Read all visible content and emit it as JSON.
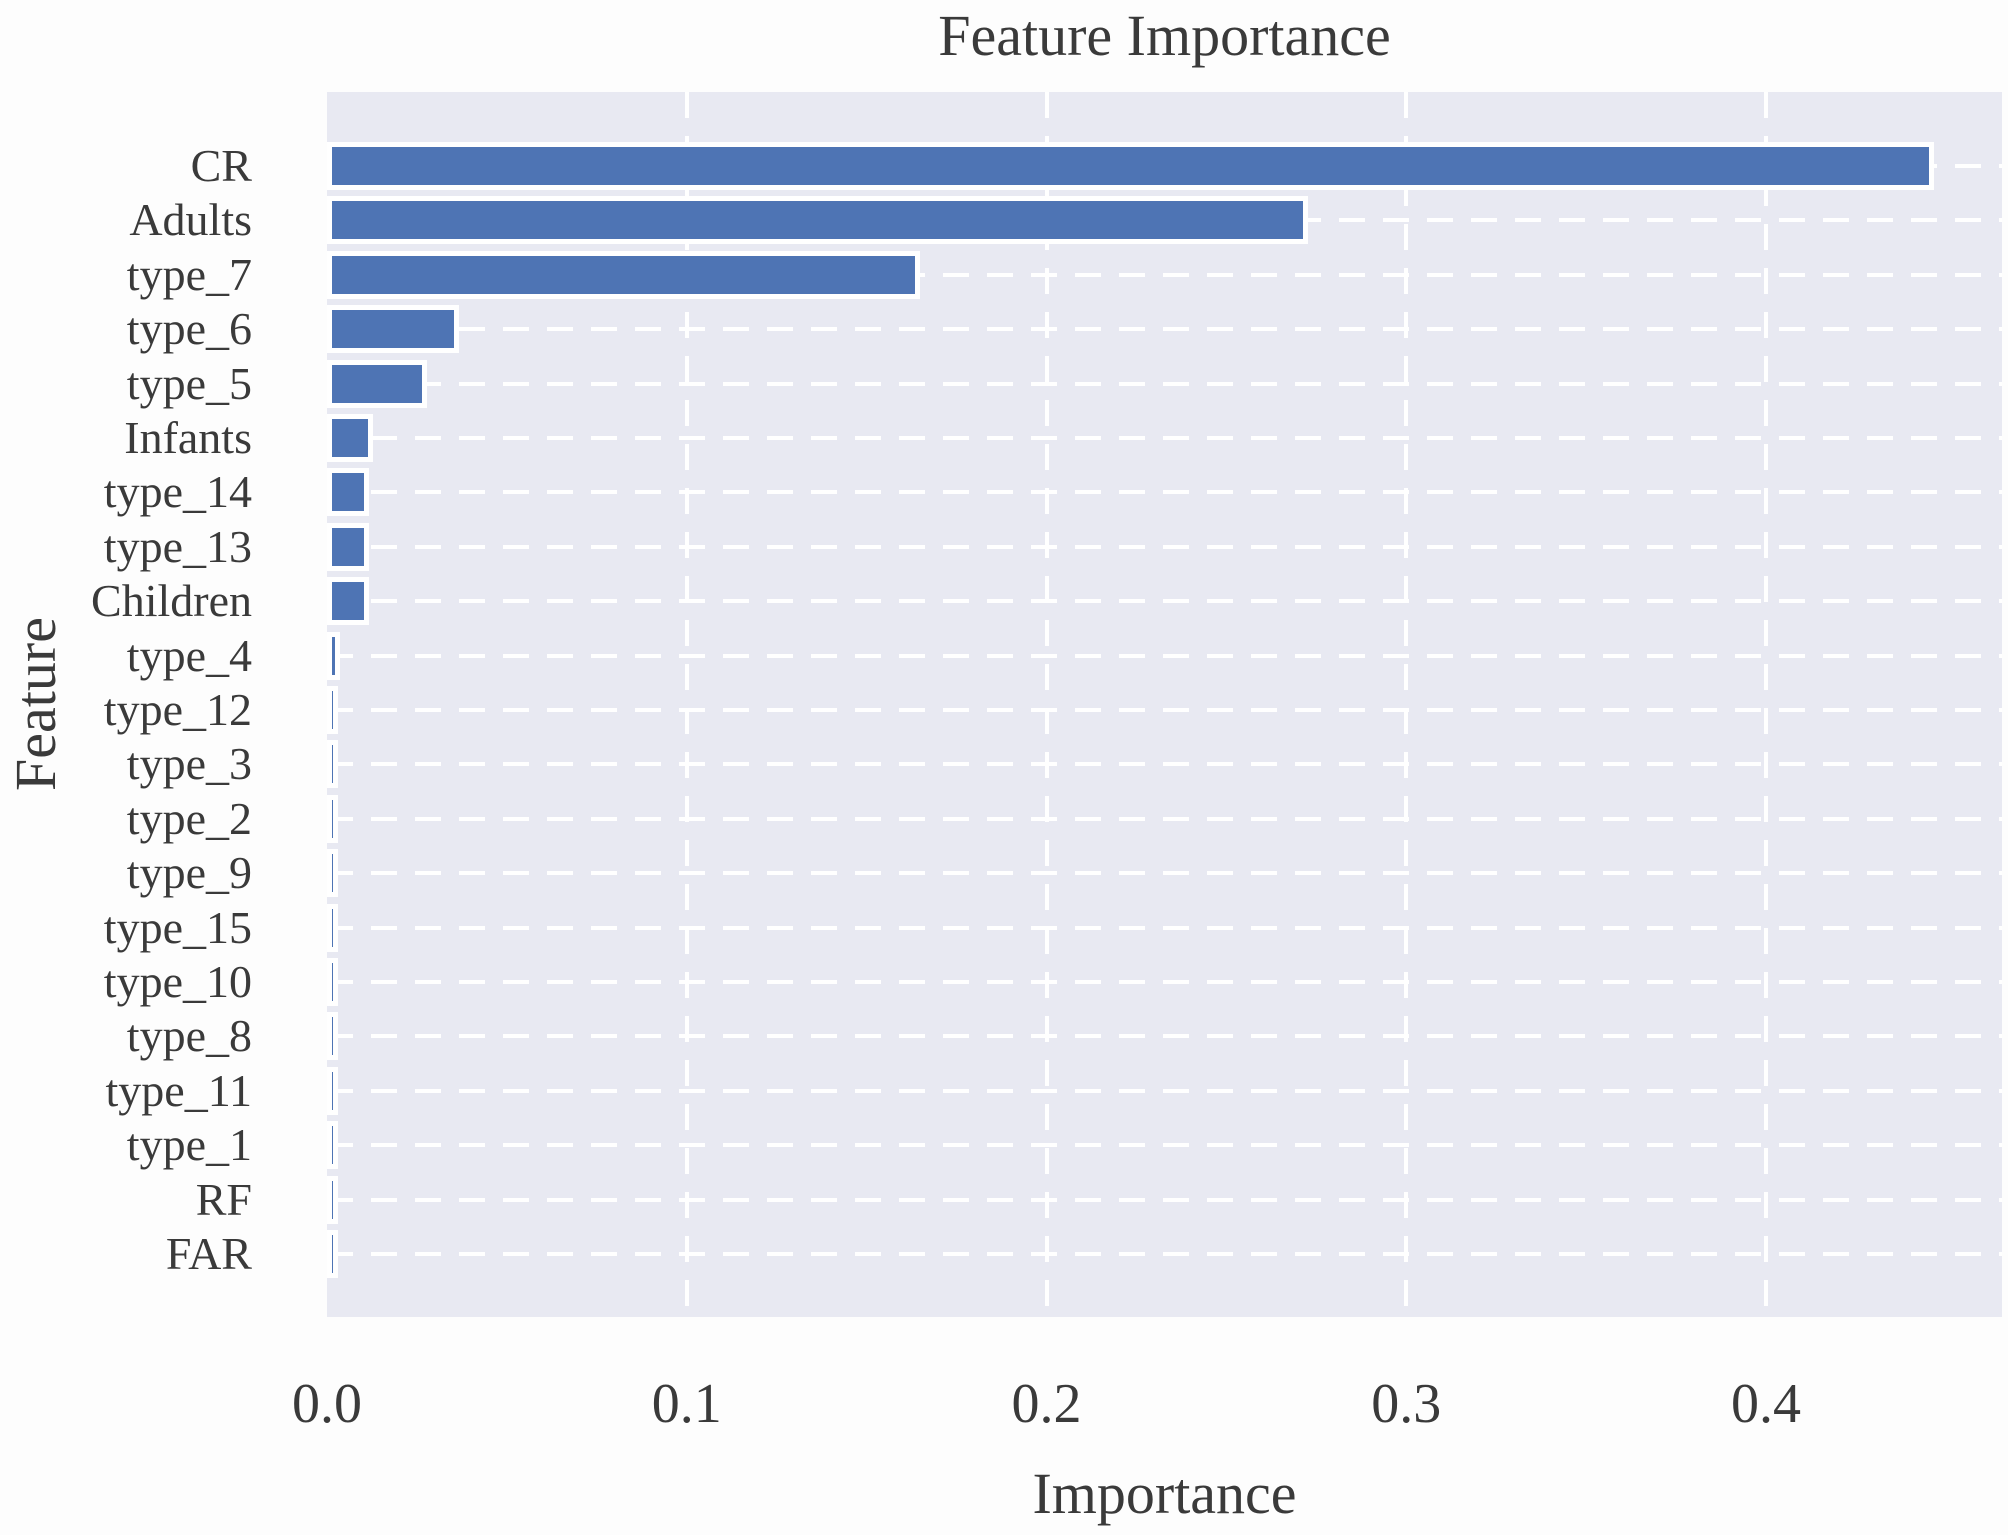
{
  "chart_data": {
    "type": "bar",
    "orientation": "horizontal",
    "title": "Feature Importance",
    "xlabel": "Importance",
    "ylabel": "Feature",
    "categories": [
      "CR",
      "Adults",
      "type_7",
      "type_6",
      "type_5",
      "Infants",
      "type_14",
      "type_13",
      "Children",
      "type_4",
      "type_12",
      "type_3",
      "type_2",
      "type_9",
      "type_15",
      "type_10",
      "type_8",
      "type_11",
      "type_1",
      "RF",
      "FAR"
    ],
    "values": [
      0.444,
      0.27,
      0.162,
      0.034,
      0.025,
      0.01,
      0.009,
      0.009,
      0.009,
      0.0008,
      0.0004,
      0.0004,
      0.0004,
      0.0003,
      0.0003,
      0.0003,
      0.0002,
      0.0002,
      0.0002,
      0.0001,
      0.0001
    ],
    "xticks": [
      0.0,
      0.1,
      0.2,
      0.3,
      0.4
    ],
    "xtick_labels": [
      "0.0",
      "0.1",
      "0.2",
      "0.3",
      "0.4"
    ],
    "xlim": [
      0,
      0.4656
    ],
    "grid": true,
    "grid_style": "white-dashed",
    "legend": false,
    "colors": {
      "bar": "#4e74b4",
      "bar_edge": "#ffffff",
      "plot_background": "#e8e9f2",
      "gridline": "#ffffff",
      "text": "#3a3a3a",
      "figure_background": "#fdfdfd"
    }
  }
}
